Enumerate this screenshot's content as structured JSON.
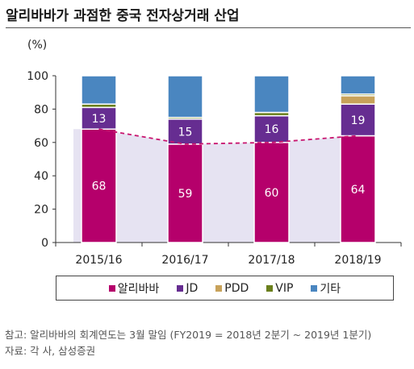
{
  "title": "알리바바가 과점한 중국 전자상거래 산업",
  "ylabel": "(%)",
  "colors": {
    "alibaba": "#b5006b",
    "jd": "#662d91",
    "pdd": "#c8a25a",
    "vip": "#6a7f1c",
    "other": "#4a86c0",
    "area": "#e6e3f2",
    "trend": "#c8146e"
  },
  "chart_data": {
    "type": "bar",
    "stacked": true,
    "categories": [
      "2015/16",
      "2016/17",
      "2017/18",
      "2018/19"
    ],
    "series": [
      {
        "name": "알리바바",
        "values": [
          68,
          59,
          60,
          64
        ],
        "labels": [
          "68",
          "59",
          "60",
          "64"
        ]
      },
      {
        "name": "JD",
        "values": [
          13,
          15,
          16,
          19
        ],
        "labels": [
          "13",
          "15",
          "16",
          "19"
        ]
      },
      {
        "name": "PDD",
        "values": [
          0,
          0,
          0,
          5
        ],
        "labels": []
      },
      {
        "name": "VIP",
        "values": [
          2,
          1,
          2,
          1
        ],
        "labels": []
      },
      {
        "name": "기타",
        "values": [
          17,
          25,
          22,
          11
        ],
        "labels": []
      }
    ],
    "ylim": [
      0,
      100
    ],
    "yticks": [
      0,
      20,
      40,
      60,
      80,
      100
    ],
    "legend_position": "bottom",
    "trend_line_series": "알리바바"
  },
  "notes": [
    "참고: 알리바바의 회계연도는 3월 말임 (FY2019 = 2018년 2분기 ~ 2019년 1분기)",
    "자료: 각 사, 삼성증권"
  ]
}
